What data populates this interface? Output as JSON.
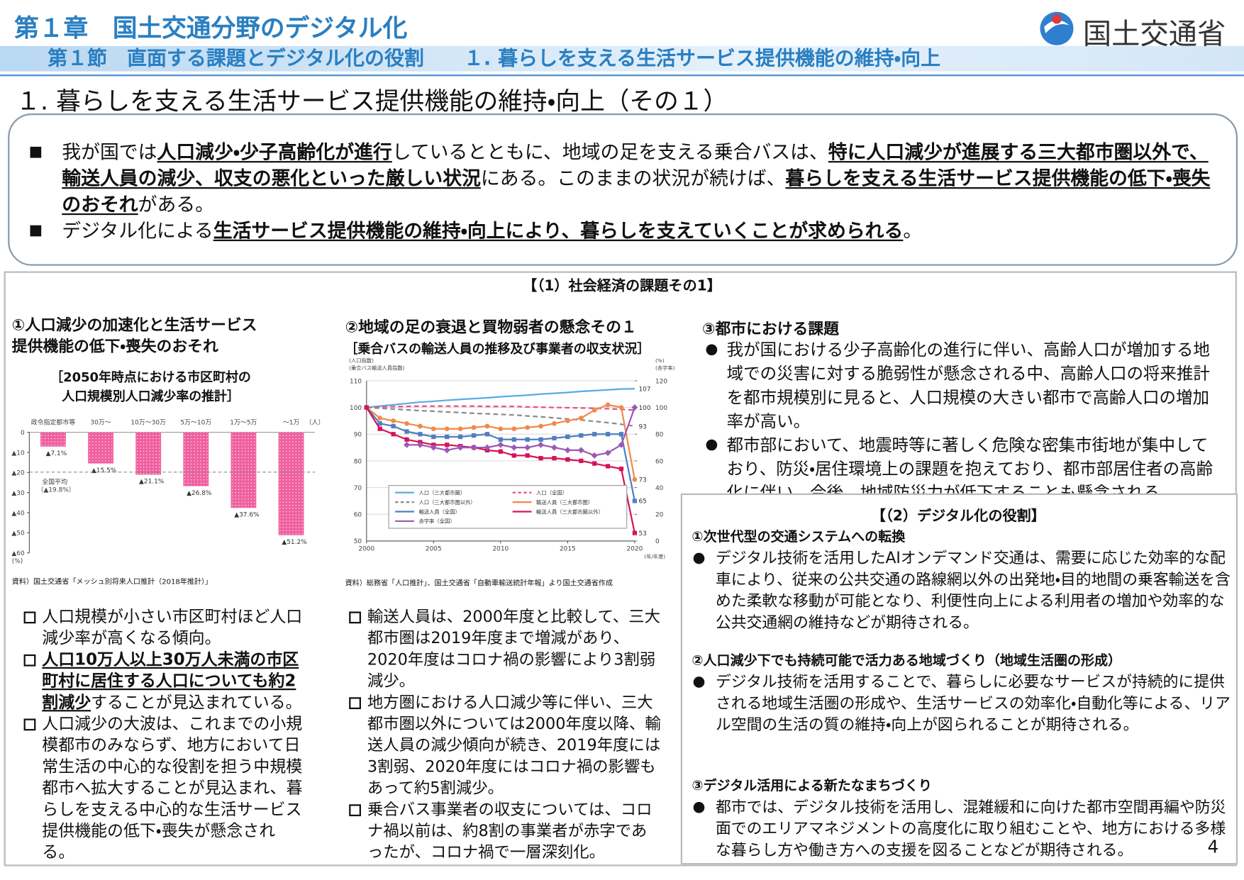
{
  "header": {
    "chapter": "第１章　国土交通分野のデジタル化",
    "section": "第１節　直面する課題とデジタル化の役割　　１. 暮らしを支える生活サービス提供機能の維持・向上",
    "logo": "国土交通省"
  },
  "title": "１. 暮らしを支える生活サービス提供機能の維持・向上（その１）",
  "summary": [
    [
      "我が国では",
      {
        "text": "人口減少・少子高齢化が進行",
        "underline": true
      },
      "しているとともに、地域の足を支える乗合バスは、",
      {
        "text": "特に人口減少が進展する三大都市圏以外で、輸送人員の減少、収支の悪化といった厳しい状況",
        "underline": true
      },
      "にある。このままの状況が続けば、",
      {
        "text": "暮らしを支える生活サービス提供機能の低下・喪失のおそれ",
        "underline": true
      },
      "がある。"
    ],
    [
      "デジタル化による",
      {
        "text": "生活サービス提供機能の維持・向上により、暮らしを支えていくことが求められる",
        "underline": true
      },
      "。"
    ]
  ],
  "panel1": {
    "title": "【（1）社会経済の課題その1】",
    "col1": {
      "heading": [
        "①人口減少の加速化と生活サービス",
        "提供機能の低下・喪失のおそれ"
      ],
      "bullets": [
        [
          "人口規模が小さい市区町村ほど人口減少率が高くなる傾向。"
        ],
        [
          {
            "text": "人口10万人以上30万人未満の市区町村に居住する人口についても約2割減少",
            "underline": true
          },
          "することが見込まれている。"
        ],
        [
          "人口減少の大波は、これまでの小規模都市のみならず、地方において日常生活の中心的な役割を担う中規模都市へ拡大することが見込まれ、暮らしを支える中心的な生活サービス提供機能の低下・喪失が懸念される。"
        ]
      ]
    },
    "col2": {
      "heading": "②地域の足の衰退と買物弱者の懸念その１",
      "bullets": [
        [
          "輸送人員は、2000年度と比較して、三大都市圏は2019年度まで増減があり、2020年度はコロナ禍の影響により3割弱減少。"
        ],
        [
          "地方圏における人口減少等に伴い、三大都市圏以外については2000年度以降、輸送人員の減少傾向が続き、2019年度には3割弱、2020年度にはコロナ禍の影響もあって約5割減少。"
        ],
        [
          "乗合バス事業者の収支については、コロナ禍以前は、約8割の事業者が赤字であったが、コロナ禍で一層深刻化。"
        ]
      ]
    },
    "col3": {
      "heading": "③都市における課題",
      "bullets": [
        [
          "我が国における少子高齢化の進行に伴い、高齢人口が増加する地域での災害に対する脆弱性が懸念される中、高齢人口の将来推計を都市規模別に見ると、人口規模の大きい都市で高齢人口の増加率が高い。"
        ],
        [
          "都市部において、地震時等に著しく危険な密集市街地が集中しており、防災・居住環境上の課題を抱えており、都市部居住者の高齢化に伴い、今後、地域防災力が低下することも懸念される。"
        ]
      ]
    }
  },
  "panel2": {
    "title": "【（2）デジタル化の役割】",
    "items": [
      {
        "heading": "①次世代型の交通システムへの転換",
        "text": "デジタル技術を活用したAIオンデマンド交通は、需要に応じた効率的な配車により、従来の公共交通の路線網以外の出発地・目的地間の乗客輸送を含めた柔軟な移動が可能となり、利便性向上による利用者の増加や効率的な公共交通網の維持などが期待される。"
      },
      {
        "heading": "②人口減少下でも持続可能で活力ある地域づくり（地域生活圏の形成）",
        "text": "デジタル技術を活用することで、暮らしに必要なサービスが持続的に提供される地域生活圏の形成や、生活サービスの効率化・自動化等による、リアル空間の生活の質の維持・向上が図られることが期待される。"
      },
      {
        "heading": "③デジタル活用による新たなまちづくり",
        "text": "都市では、デジタル技術を活用し、混雑緩和に向けた都市空間再編や防災面でのエリアマネジメントの高度化に取り組むことや、地方における多様な暮らし方や働き方への支援を図ることなどが期待される。"
      }
    ]
  },
  "page_number": "4",
  "chart_data": [
    {
      "type": "bar",
      "title": [
        "［2050年時点における市区町村の",
        "人口規模別人口減少率の推計］"
      ],
      "categories": [
        "政令指定都市等",
        "30万～",
        "10万～30万",
        "5万～10万",
        "1万～5万",
        "～1万"
      ],
      "x_unit": "（人）",
      "values": [
        -7.1,
        -15.5,
        -21.1,
        -26.8,
        -37.6,
        -51.2
      ],
      "value_labels": [
        "▲7.1%",
        "▲15.5%",
        "▲21.1%",
        "▲26.8%",
        "▲37.6%",
        "▲51.2%"
      ],
      "color": "#f0609f",
      "average": {
        "label": "全国平均",
        "value": -19.8,
        "value_label": "（▲19.8%）"
      },
      "y_label": "(%)",
      "ylim": [
        -60,
        0
      ],
      "yticks": [
        0,
        {
          "value": -10,
          "label": "▲10"
        },
        {
          "value": -20,
          "label": "▲20"
        },
        {
          "value": -30,
          "label": "▲30"
        },
        {
          "value": -40,
          "label": "▲40"
        },
        {
          "value": -50,
          "label": "▲50"
        },
        {
          "value": -60,
          "label": "▲60"
        }
      ],
      "source": "資料）国土交通省「メッシュ別将来人口推計（2018年推計）」"
    },
    {
      "type": "line",
      "title": "［乗合バスの輸送人員の推移及び事業者の収支状況］",
      "x": [
        2000,
        2001,
        2002,
        2003,
        2004,
        2005,
        2006,
        2007,
        2008,
        2009,
        2010,
        2011,
        2012,
        2013,
        2014,
        2015,
        2016,
        2017,
        2018,
        2019,
        2020
      ],
      "series": [
        {
          "name": "人口（三大都市圏）",
          "color": "#5aaae6",
          "dash": false,
          "marker": "none",
          "end_label": true,
          "values": [
            100,
            100.5,
            101,
            101.5,
            102,
            102.3,
            102.7,
            103,
            103.3,
            103.6,
            104,
            104.3,
            104.6,
            105,
            105.3,
            105.6,
            106,
            106.3,
            106.6,
            106.9,
            107
          ]
        },
        {
          "name": "人口（全国）",
          "color": "#e8508a",
          "dash": true,
          "marker": "none",
          "end_label": false,
          "values": [
            100,
            100.2,
            100.3,
            100.4,
            100.5,
            100.5,
            100.5,
            100.5,
            100.5,
            100.4,
            100.4,
            100.4,
            100.2,
            100.1,
            100,
            99.9,
            99.8,
            99.7,
            99.5,
            99.3,
            99
          ]
        },
        {
          "name": "人口（三大都市圏以外）",
          "color": "#8a8a8a",
          "dash": true,
          "marker": "none",
          "end_label": true,
          "values": [
            100,
            99.7,
            99.4,
            99.1,
            98.8,
            98.6,
            98.3,
            98.1,
            97.8,
            97.6,
            97.4,
            97.2,
            96.8,
            96.5,
            96.1,
            95.7,
            95.3,
            94.8,
            94.3,
            93.7,
            93
          ]
        },
        {
          "name": "輸送人員（三大都市圏）",
          "color": "#f08a4b",
          "dash": false,
          "marker": "circle",
          "end_label": true,
          "values": [
            100,
            96,
            95,
            94,
            93,
            92,
            92,
            92,
            92.5,
            93,
            92,
            92,
            92.5,
            93,
            94,
            95,
            96,
            99,
            101,
            100,
            73
          ]
        },
        {
          "name": "輸送人員（全国）",
          "color": "#4f7fbf",
          "dash": false,
          "marker": "square",
          "end_label": true,
          "values": [
            100,
            94,
            93,
            91,
            90,
            89,
            89,
            89,
            89.5,
            90,
            88,
            88,
            88,
            88,
            88.5,
            89,
            89.5,
            90,
            90,
            90,
            65
          ]
        },
        {
          "name": "輸送人員（三大都市圏以外）",
          "color": "#d4145a",
          "dash": false,
          "marker": "square",
          "end_label": true,
          "values": [
            100,
            92,
            90,
            88,
            87,
            86,
            86,
            85.5,
            85,
            84,
            83.5,
            82,
            82,
            81,
            81,
            80.5,
            80,
            79,
            78,
            77,
            53
          ]
        },
        {
          "name": "赤字率（全国）",
          "color": "#9b59b6",
          "dash": false,
          "marker": "diamond",
          "end_label": true,
          "axis": "y2",
          "values": [
            null,
            null,
            null,
            72,
            72,
            70,
            68,
            70,
            70,
            70,
            72,
            70,
            70,
            72,
            70,
            68,
            68,
            64,
            66,
            72,
            100
          ]
        }
      ],
      "y_label": [
        "(人口指数)",
        "(乗合バス輸送人員指数)"
      ],
      "y2_label": [
        "(%)",
        "(赤字率)"
      ],
      "x_label": "(年/年度)",
      "xlim": [
        2000,
        2020
      ],
      "xticks": [
        2000,
        2005,
        2010,
        2015,
        2020
      ],
      "ylim": [
        50,
        110
      ],
      "yticks": [
        50,
        60,
        70,
        80,
        90,
        100,
        110
      ],
      "y2lim": [
        0,
        120
      ],
      "y2ticks": [
        0,
        20,
        40,
        60,
        80,
        100,
        120
      ],
      "grid": true,
      "legend": "lower center",
      "source": "資料）総務省「人口推計」、国土交通省「自動車輸送統計年報」より国土交通省作成"
    }
  ]
}
